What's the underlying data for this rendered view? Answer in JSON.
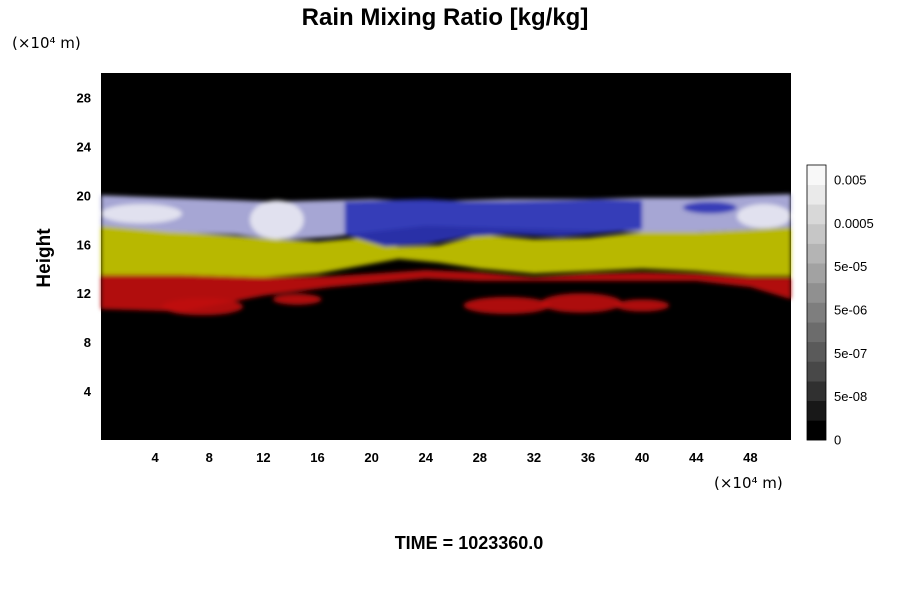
{
  "chart_data": {
    "type": "heatmap",
    "title": "Rain Mixing Ratio [kg/kg]",
    "ylabel": "Height",
    "x_unit": "(×10⁴ m)",
    "y_unit": "(×10⁴ m)",
    "xlim": [
      0,
      51
    ],
    "ylim": [
      0,
      30
    ],
    "x_ticks": [
      "4",
      "8",
      "12",
      "16",
      "20",
      "24",
      "28",
      "32",
      "36",
      "40",
      "44",
      "48"
    ],
    "y_ticks": [
      "4",
      "8",
      "12",
      "16",
      "20",
      "24",
      "28"
    ],
    "colorbar": {
      "labels": [
        "0.005",
        "0.0005",
        "5e-05",
        "5e-06",
        "5e-07",
        "5e-08",
        "0"
      ],
      "colors": [
        "#000000",
        "#181818",
        "#303030",
        "#484848",
        "#5a5a5a",
        "#6c6c6c",
        "#7e7e7e",
        "#909090",
        "#a2a2a2",
        "#b4b4b4",
        "#c6c6c6",
        "#d8d8d8",
        "#eaeaea",
        "#f8f8f8"
      ]
    },
    "bands": [
      {
        "name": "red",
        "color": "#c01010",
        "x": [
          0,
          6,
          12,
          17,
          20,
          24,
          28,
          32,
          36,
          40,
          44,
          48,
          51
        ],
        "bottom": [
          10.7,
          10.5,
          11.8,
          12.5,
          12.8,
          13.2,
          13.0,
          13.0,
          13.0,
          13.0,
          13.0,
          12.5,
          11.5
        ],
        "top": [
          13.5,
          13.5,
          13.3,
          13.4,
          13.6,
          13.9,
          13.7,
          13.3,
          13.6,
          13.7,
          13.6,
          13.3,
          13.3
        ]
      },
      {
        "name": "yellow",
        "color": "#c8c800",
        "x": [
          0,
          6,
          12,
          16,
          19,
          22,
          25,
          28,
          32,
          36,
          40,
          44,
          48,
          51
        ],
        "bottom": [
          13.5,
          13.5,
          13.3,
          13.6,
          14.2,
          14.8,
          14.5,
          14.0,
          13.6,
          13.8,
          14.0,
          13.8,
          13.4,
          13.4
        ],
        "top": [
          17.5,
          17.0,
          16.5,
          16.2,
          16.5,
          15.8,
          15.9,
          16.8,
          16.4,
          16.5,
          17.0,
          17.0,
          17.2,
          17.4
        ]
      },
      {
        "name": "lavender",
        "color": "#b4b4e6",
        "x": [
          0,
          5,
          10,
          12,
          14,
          17,
          20,
          24,
          30,
          36,
          40,
          44,
          48,
          51
        ],
        "bottom": [
          17.5,
          17.0,
          16.8,
          16.5,
          16.4,
          16.6,
          17.0,
          17.5,
          17.3,
          17.1,
          17.0,
          17.0,
          17.2,
          17.4
        ],
        "top": [
          20.0,
          19.8,
          19.6,
          19.5,
          19.5,
          19.6,
          19.7,
          19.5,
          19.7,
          19.7,
          19.8,
          19.8,
          20.0,
          20.1
        ]
      },
      {
        "name": "blue",
        "color": "#2b33b5",
        "x": [
          18,
          21,
          24,
          27,
          30,
          34,
          37,
          40
        ],
        "bottom": [
          16.8,
          15.8,
          16.0,
          16.6,
          16.8,
          16.6,
          16.9,
          17.2
        ],
        "top": [
          19.5,
          19.6,
          19.7,
          19.5,
          19.5,
          19.6,
          19.7,
          19.6
        ]
      }
    ],
    "blobs": [
      {
        "color": "#c01010",
        "x": 14.5,
        "y": 11.5,
        "rx": 1.8,
        "ry": 0.45
      },
      {
        "color": "#c01010",
        "x": 30.0,
        "y": 11.0,
        "rx": 3.2,
        "ry": 0.7
      },
      {
        "color": "#c01010",
        "x": 35.5,
        "y": 11.2,
        "rx": 3.0,
        "ry": 0.8
      },
      {
        "color": "#c01010",
        "x": 40.0,
        "y": 11.0,
        "rx": 2.0,
        "ry": 0.5
      },
      {
        "color": "#c01010",
        "x": 7.5,
        "y": 10.9,
        "rx": 3.0,
        "ry": 0.7
      },
      {
        "color": "#e8e8f2",
        "x": 13.0,
        "y": 18.0,
        "rx": 2.0,
        "ry": 1.6
      },
      {
        "color": "#e8e8f2",
        "x": 3.0,
        "y": 18.5,
        "rx": 3.0,
        "ry": 0.8
      },
      {
        "color": "#e8e8f2",
        "x": 49.0,
        "y": 18.3,
        "rx": 2.0,
        "ry": 1.0
      },
      {
        "color": "#2b33b5",
        "x": 45.0,
        "y": 19.0,
        "rx": 2.0,
        "ry": 0.5
      }
    ]
  },
  "footer": {
    "time_text": "TIME = 1023360.0"
  }
}
